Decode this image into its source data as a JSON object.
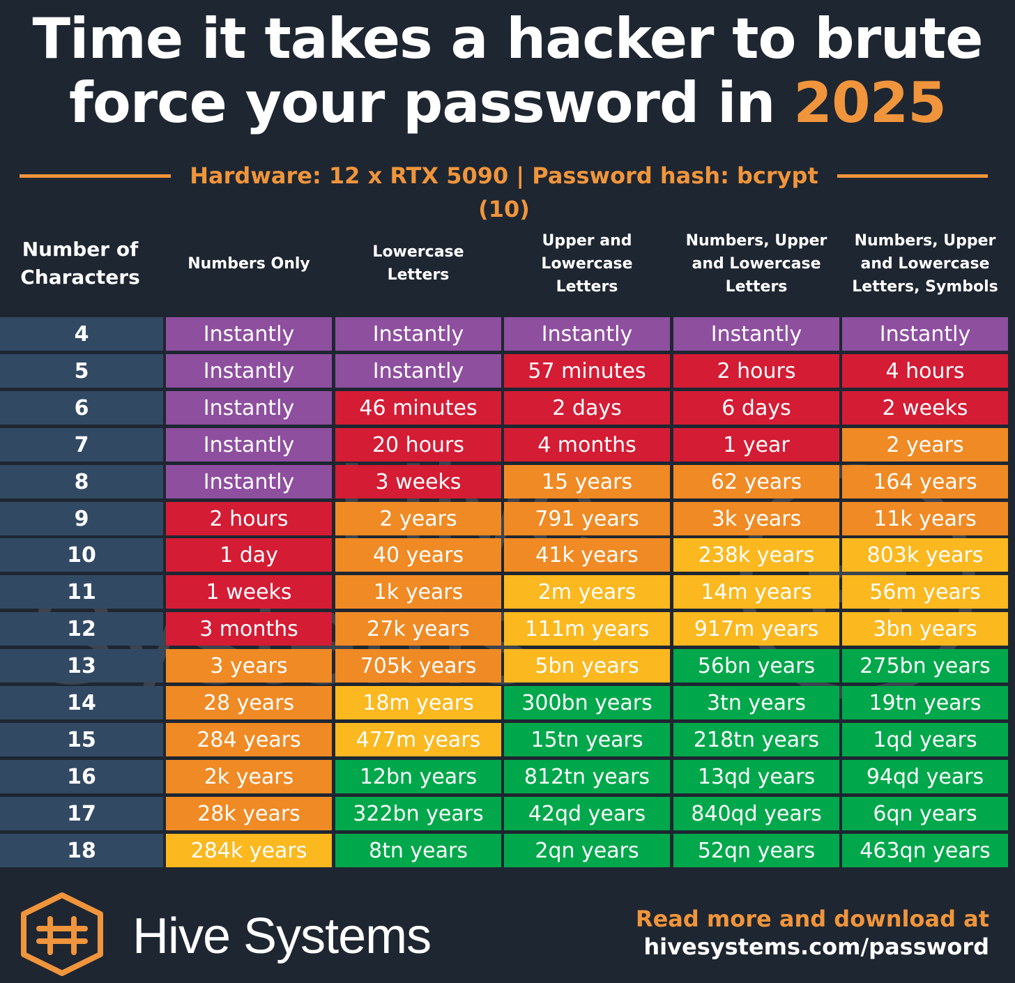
{
  "title": {
    "line1": "Time it takes a hacker to brute",
    "line2_prefix": "force your password in ",
    "line2_year": "2025"
  },
  "subtitle": "Hardware: 12 x RTX 5090 | Password hash: bcrypt (10)",
  "colors": {
    "background": "#1e2631",
    "accent": "#f0953c",
    "rowhead": "#324963",
    "purple": "#8e4f9f",
    "red": "#d41c35",
    "orange": "#f08a24",
    "yellow": "#fbb81f",
    "green": "#00a84b"
  },
  "chart_data": {
    "type": "table",
    "title": "Time it takes a hacker to brute force your password in 2025",
    "row_header": "Number of Characters",
    "columns": [
      "Numbers Only",
      "Lowercase Letters",
      "Upper and Lowercase Letters",
      "Numbers, Upper and Lowercase Letters",
      "Numbers, Upper and Lowercase Letters, Symbols"
    ],
    "column_headers_display": [
      "Numbers Only",
      "Lowercase\nLetters",
      "Upper and\nLowercase\nLetters",
      "Numbers, Upper\nand Lowercase\nLetters",
      "Numbers, Upper\nand Lowercase\nLetters, Symbols"
    ],
    "row_header_display": "Number of\nCharacters",
    "rows": [
      {
        "chars": "4",
        "values": [
          "Instantly",
          "Instantly",
          "Instantly",
          "Instantly",
          "Instantly"
        ],
        "levels": [
          "purple",
          "purple",
          "purple",
          "purple",
          "purple"
        ]
      },
      {
        "chars": "5",
        "values": [
          "Instantly",
          "Instantly",
          "57 minutes",
          "2 hours",
          "4 hours"
        ],
        "levels": [
          "purple",
          "purple",
          "red",
          "red",
          "red"
        ]
      },
      {
        "chars": "6",
        "values": [
          "Instantly",
          "46 minutes",
          "2 days",
          "6 days",
          "2 weeks"
        ],
        "levels": [
          "purple",
          "red",
          "red",
          "red",
          "red"
        ]
      },
      {
        "chars": "7",
        "values": [
          "Instantly",
          "20 hours",
          "4 months",
          "1 year",
          "2 years"
        ],
        "levels": [
          "purple",
          "red",
          "red",
          "red",
          "orange"
        ]
      },
      {
        "chars": "8",
        "values": [
          "Instantly",
          "3 weeks",
          "15 years",
          "62 years",
          "164 years"
        ],
        "levels": [
          "purple",
          "red",
          "orange",
          "orange",
          "orange"
        ]
      },
      {
        "chars": "9",
        "values": [
          "2 hours",
          "2 years",
          "791 years",
          "3k years",
          "11k years"
        ],
        "levels": [
          "red",
          "orange",
          "orange",
          "orange",
          "orange"
        ]
      },
      {
        "chars": "10",
        "values": [
          "1 day",
          "40 years",
          "41k years",
          "238k years",
          "803k years"
        ],
        "levels": [
          "red",
          "orange",
          "orange",
          "yellow",
          "yellow"
        ]
      },
      {
        "chars": "11",
        "values": [
          "1 weeks",
          "1k years",
          "2m years",
          "14m years",
          "56m years"
        ],
        "levels": [
          "red",
          "orange",
          "yellow",
          "yellow",
          "yellow"
        ]
      },
      {
        "chars": "12",
        "values": [
          "3 months",
          "27k years",
          "111m years",
          "917m years",
          "3bn years"
        ],
        "levels": [
          "red",
          "orange",
          "yellow",
          "yellow",
          "yellow"
        ]
      },
      {
        "chars": "13",
        "values": [
          "3 years",
          "705k years",
          "5bn years",
          "56bn years",
          "275bn years"
        ],
        "levels": [
          "orange",
          "orange",
          "yellow",
          "green",
          "green"
        ]
      },
      {
        "chars": "14",
        "values": [
          "28 years",
          "18m years",
          "300bn years",
          "3tn years",
          "19tn years"
        ],
        "levels": [
          "orange",
          "yellow",
          "green",
          "green",
          "green"
        ]
      },
      {
        "chars": "15",
        "values": [
          "284 years",
          "477m years",
          "15tn years",
          "218tn years",
          "1qd years"
        ],
        "levels": [
          "orange",
          "yellow",
          "green",
          "green",
          "green"
        ]
      },
      {
        "chars": "16",
        "values": [
          "2k years",
          "12bn years",
          "812tn years",
          "13qd years",
          "94qd years"
        ],
        "levels": [
          "orange",
          "green",
          "green",
          "green",
          "green"
        ]
      },
      {
        "chars": "17",
        "values": [
          "28k years",
          "322bn years",
          "42qd years",
          "840qd years",
          "6qn years"
        ],
        "levels": [
          "orange",
          "green",
          "green",
          "green",
          "green"
        ]
      },
      {
        "chars": "18",
        "values": [
          "284k years",
          "8tn years",
          "2qn years",
          "52qn years",
          "463qn years"
        ],
        "levels": [
          "yellow",
          "green",
          "green",
          "green",
          "green"
        ]
      }
    ]
  },
  "watermark": {
    "line1": "Hive",
    "line2": "Systems"
  },
  "footer": {
    "logo_icon": "hive-hexagon-logo",
    "brand": "Hive Systems",
    "readmore_line1": "Read more and download at",
    "readmore_line2": "hivesystems.com/password"
  }
}
